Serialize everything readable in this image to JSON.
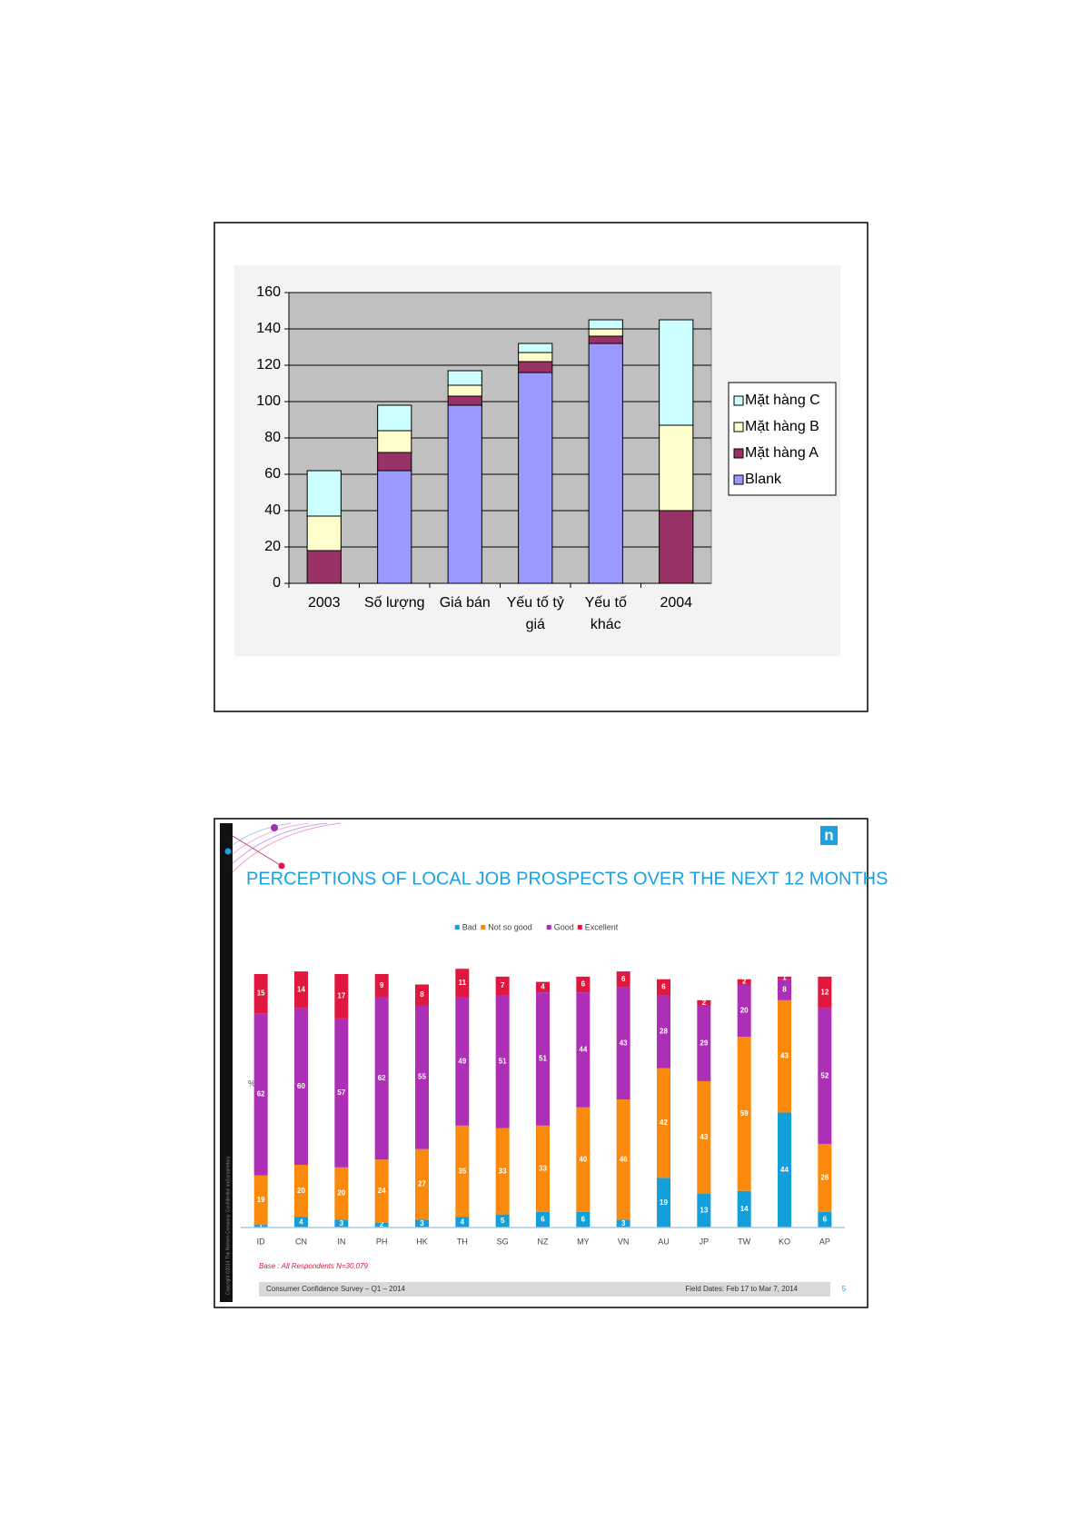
{
  "charts": [
    {
      "chart_data": {
        "type": "bar",
        "stacked": true,
        "categories": [
          "2003",
          "Số lượng",
          "Giá bán",
          "Yếu tố tỷ giá",
          "Yếu tố khác",
          "2004"
        ],
        "series": [
          {
            "name": "Blank",
            "color": "#9999ff",
            "values": [
              0,
              62,
              98,
              116,
              132,
              0
            ]
          },
          {
            "name": "Mặt hàng A",
            "color": "#993366",
            "values": [
              18,
              10,
              5,
              6,
              4,
              40
            ]
          },
          {
            "name": "Mặt hàng B",
            "color": "#ffffcc",
            "values": [
              19,
              12,
              6,
              5,
              4,
              47
            ]
          },
          {
            "name": "Mặt hàng C",
            "color": "#ccffff",
            "values": [
              25,
              14,
              8,
              5,
              5,
              58
            ]
          }
        ],
        "ylim": [
          0,
          160
        ],
        "yticks": [
          0,
          20,
          40,
          60,
          80,
          100,
          120,
          140,
          160
        ],
        "grid": true,
        "plot_background": "#c0c0c0",
        "legend": "right"
      }
    },
    {
      "chart_data": {
        "type": "bar",
        "stacked": true,
        "title": "PERCEPTIONS OF LOCAL JOB PROSPECTS OVER THE NEXT 12 MONTHS",
        "y_label": "%",
        "categories": [
          "ID",
          "CN",
          "IN",
          "PH",
          "HK",
          "TH",
          "SG",
          "NZ",
          "MY",
          "VN",
          "AU",
          "JP",
          "TW",
          "KO",
          "AP"
        ],
        "series": [
          {
            "name": "Bad",
            "color": "#139fda",
            "values": [
              1,
              4,
              3,
              2,
              3,
              4,
              5,
              6,
              6,
              3,
              19,
              13,
              14,
              44,
              6
            ]
          },
          {
            "name": "Not so good",
            "color": "#fb8a0c",
            "values": [
              19,
              20,
              20,
              24,
              27,
              35,
              33,
              33,
              40,
              46,
              42,
              43,
              59,
              43,
              26
            ]
          },
          {
            "name": "Good",
            "color": "#ac2fb5",
            "values": [
              62,
              60,
              57,
              62,
              55,
              49,
              51,
              51,
              44,
              43,
              28,
              29,
              20,
              8,
              52
            ]
          },
          {
            "name": "Excellent",
            "color": "#e0173f",
            "values": [
              15,
              14,
              17,
              9,
              8,
              11,
              7,
              4,
              6,
              6,
              6,
              2,
              2,
              1,
              12
            ]
          }
        ],
        "ylim": [
          0,
          105
        ],
        "legend": "top",
        "data_labels": true
      }
    }
  ],
  "slide": {
    "base_note": "Base : All Respondents N=30,079",
    "footer_left": "Consumer Confidence Survey – Q1 – 2014",
    "footer_right": "Field Dates: Feb 17 to Mar 7, 2014",
    "page_number": "5",
    "logo": "n",
    "copyright": "Copyright ©2014 The Nielsen Company. Confidential and proprietary."
  }
}
